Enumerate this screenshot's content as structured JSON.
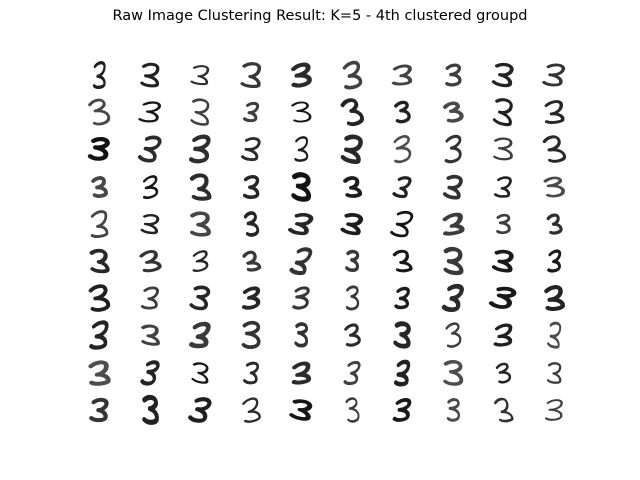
{
  "figure": {
    "title": "Raw Image Clustering Result: K=5 - 4th clustered groupd"
  },
  "grid": {
    "rows": 10,
    "cols": 10,
    "digit_label": "3",
    "ink_color": "#111111",
    "background_color": "#ffffff"
  }
}
